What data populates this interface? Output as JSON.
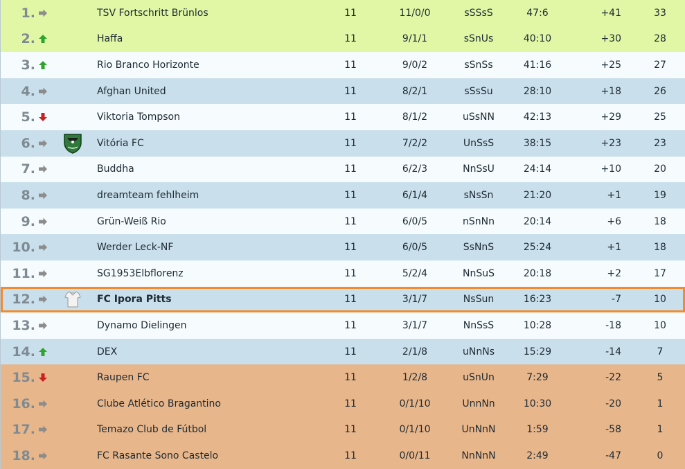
{
  "standings": [
    {
      "rank": "1.",
      "trend": "same",
      "team": "TSV Fortschritt Brünlos",
      "played": "11",
      "record": "11/0/0",
      "form": "sSSsS",
      "goals": "47:6",
      "diff": "+41",
      "points": "33",
      "zone": "promo"
    },
    {
      "rank": "2.",
      "trend": "up",
      "team": "Haffa",
      "played": "11",
      "record": "9/1/1",
      "form": "sSnUs",
      "goals": "40:10",
      "diff": "+30",
      "points": "28",
      "zone": "promo"
    },
    {
      "rank": "3.",
      "trend": "up",
      "team": "Rio Branco Horizonte",
      "played": "11",
      "record": "9/0/2",
      "form": "sSnSs",
      "goals": "41:16",
      "diff": "+25",
      "points": "27",
      "zone": "white"
    },
    {
      "rank": "4.",
      "trend": "same",
      "team": "Afghan United",
      "played": "11",
      "record": "8/2/1",
      "form": "sSsSu",
      "goals": "28:10",
      "diff": "+18",
      "points": "26",
      "zone": "blue"
    },
    {
      "rank": "5.",
      "trend": "down",
      "team": "Viktoria Tompson",
      "played": "11",
      "record": "8/1/2",
      "form": "uSsNN",
      "goals": "42:13",
      "diff": "+29",
      "points": "25",
      "zone": "white"
    },
    {
      "rank": "6.",
      "trend": "same",
      "team": "Vitória FC",
      "played": "11",
      "record": "7/2/2",
      "form": "UnSsS",
      "goals": "38:15",
      "diff": "+23",
      "points": "23",
      "zone": "blue",
      "crest": "shield-crest"
    },
    {
      "rank": "7.",
      "trend": "same",
      "team": "Buddha",
      "played": "11",
      "record": "6/2/3",
      "form": "NnSsU",
      "goals": "24:14",
      "diff": "+10",
      "points": "20",
      "zone": "white"
    },
    {
      "rank": "8.",
      "trend": "same",
      "team": "dreamteam fehlheim",
      "played": "11",
      "record": "6/1/4",
      "form": "sNsSn",
      "goals": "21:20",
      "diff": "+1",
      "points": "19",
      "zone": "blue"
    },
    {
      "rank": "9.",
      "trend": "same",
      "team": "Grün-Weiß Rio",
      "played": "11",
      "record": "6/0/5",
      "form": "nSnNn",
      "goals": "20:14",
      "diff": "+6",
      "points": "18",
      "zone": "white"
    },
    {
      "rank": "10.",
      "trend": "same",
      "team": "Werder Leck-NF",
      "played": "11",
      "record": "6/0/5",
      "form": "SsNnS",
      "goals": "25:24",
      "diff": "+1",
      "points": "18",
      "zone": "blue"
    },
    {
      "rank": "11.",
      "trend": "same",
      "team": "SG1953Elbflorenz",
      "played": "11",
      "record": "5/2/4",
      "form": "NnSuS",
      "goals": "20:18",
      "diff": "+2",
      "points": "17",
      "zone": "white"
    },
    {
      "rank": "12.",
      "trend": "same",
      "team": "FC Ipora Pitts",
      "played": "11",
      "record": "3/1/7",
      "form": "NsSun",
      "goals": "16:23",
      "diff": "-7",
      "points": "10",
      "zone": "blue",
      "crest": "shirt-crest",
      "highlight": true
    },
    {
      "rank": "13.",
      "trend": "same",
      "team": "Dynamo Dielingen",
      "played": "11",
      "record": "3/1/7",
      "form": "NnSsS",
      "goals": "10:28",
      "diff": "-18",
      "points": "10",
      "zone": "white"
    },
    {
      "rank": "14.",
      "trend": "up",
      "team": "DEX",
      "played": "11",
      "record": "2/1/8",
      "form": "uNnNs",
      "goals": "15:29",
      "diff": "-14",
      "points": "7",
      "zone": "blue"
    },
    {
      "rank": "15.",
      "trend": "down",
      "team": "Raupen FC",
      "played": "11",
      "record": "1/2/8",
      "form": "uSnUn",
      "goals": "7:29",
      "diff": "-22",
      "points": "5",
      "zone": "releg"
    },
    {
      "rank": "16.",
      "trend": "same",
      "team": "Clube Atlético Bragantino",
      "played": "11",
      "record": "0/1/10",
      "form": "UnnNn",
      "goals": "10:30",
      "diff": "-20",
      "points": "1",
      "zone": "releg"
    },
    {
      "rank": "17.",
      "trend": "same",
      "team": "Temazo Club de Fútbol",
      "played": "11",
      "record": "0/1/10",
      "form": "UnNnN",
      "goals": "1:59",
      "diff": "-58",
      "points": "1",
      "zone": "releg"
    },
    {
      "rank": "18.",
      "trend": "same",
      "team": "FC Rasante Sono Castelo",
      "played": "11",
      "record": "0/0/11",
      "form": "NnNnN",
      "goals": "2:49",
      "diff": "-47",
      "points": "0",
      "zone": "releg"
    }
  ],
  "colors": {
    "promo": "#e1f7a5",
    "white": "#f6fbfd",
    "blue": "#c9dfeb",
    "releg": "#e8b68b",
    "highlight_border": "#f28a2f",
    "trend_up": "#2fa52f",
    "trend_down": "#cc1f1f",
    "trend_same": "#8c8c8c"
  }
}
